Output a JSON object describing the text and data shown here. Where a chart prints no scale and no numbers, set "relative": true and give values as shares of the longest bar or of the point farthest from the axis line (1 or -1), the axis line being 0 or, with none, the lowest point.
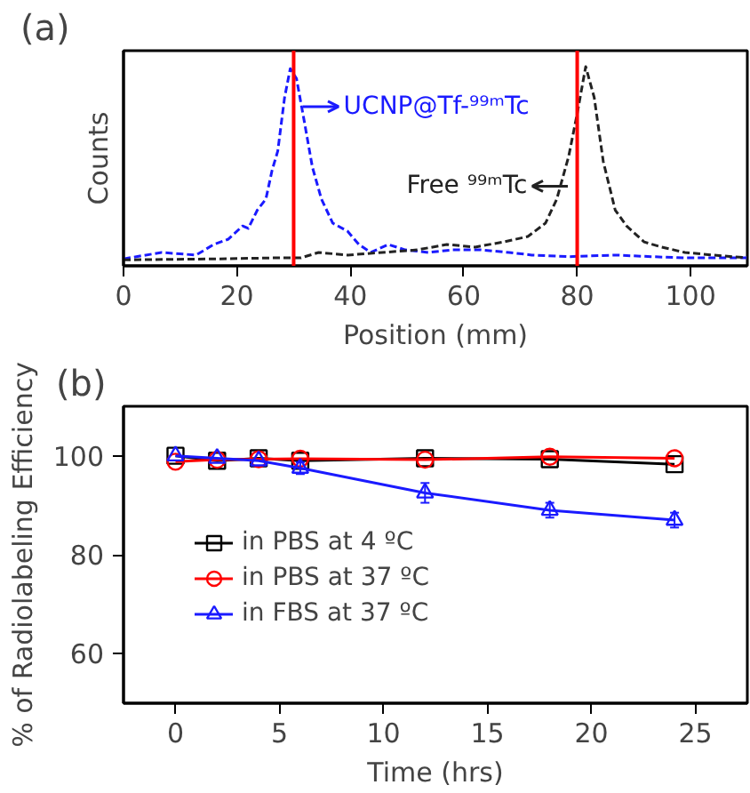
{
  "chart_data": [
    {
      "type": "line",
      "title": "(a)",
      "xlabel": "Position (mm)",
      "ylabel": "Counts",
      "relative": true,
      "xlim": [
        0,
        110
      ],
      "xticks": [
        0,
        20,
        40,
        60,
        80,
        100
      ],
      "tick_labels": "x",
      "line_style": "dashed",
      "grid": false,
      "legend": false,
      "series": [
        {
          "color": "#1a1aff",
          "x": [
            0,
            6.7,
            12.8,
            15.9,
            18.5,
            21,
            22,
            23.6,
            25.1,
            26.2,
            27.2,
            28.4,
            29.4,
            30.5,
            31.8,
            33.3,
            34.9,
            36.9,
            39.5,
            41.5,
            43.6,
            46.7,
            49.7,
            53.8,
            58,
            63,
            68,
            72,
            78.5,
            86.7,
            93,
            99,
            110
          ],
          "values": [
            0.035,
            0.067,
            0.054,
            0.107,
            0.134,
            0.2,
            0.188,
            0.28,
            0.335,
            0.48,
            0.576,
            0.845,
            0.99,
            0.94,
            0.737,
            0.496,
            0.335,
            0.214,
            0.174,
            0.107,
            0.067,
            0.107,
            0.08,
            0.067,
            0.08,
            0.08,
            0.067,
            0.054,
            0.046,
            0.054,
            0.046,
            0.04,
            0.04
          ]
        },
        {
          "color": "#222222",
          "x": [
            0,
            17,
            27,
            31.3,
            34.4,
            39.5,
            45.6,
            51.8,
            57,
            62,
            67,
            71.3,
            74.4,
            76.4,
            78.5,
            80,
            81.5,
            83,
            84.6,
            86.7,
            88.7,
            91.8,
            94.9,
            99,
            104,
            110
          ],
          "values": [
            0.03,
            0.035,
            0.04,
            0.04,
            0.067,
            0.054,
            0.067,
            0.08,
            0.107,
            0.094,
            0.12,
            0.147,
            0.214,
            0.335,
            0.55,
            0.764,
            1,
            0.845,
            0.523,
            0.28,
            0.2,
            0.12,
            0.094,
            0.067,
            0.054,
            0.04
          ]
        }
      ],
      "ref_lines": [
        {
          "axis": "x",
          "value": 30,
          "color": "#ff0000"
        },
        {
          "axis": "x",
          "value": 80,
          "color": "#ff0000"
        }
      ],
      "annotations": [
        "UCNP@Tf-⁹⁹ᵐTc",
        "Free ⁹⁹ᵐTc"
      ]
    },
    {
      "type": "line",
      "title": "(b)",
      "xlabel": "Time (hrs)",
      "ylabel": "% of Radiolabeling Efficiency",
      "xlim": [
        -2.5,
        27.5
      ],
      "xticks": [
        0,
        5,
        10,
        15,
        20,
        25
      ],
      "ylim": [
        50,
        110
      ],
      "yticks": [
        60,
        80,
        100
      ],
      "grid": false,
      "legend": "bottom left",
      "line_style": "solid",
      "x": [
        0,
        2,
        4,
        6,
        12,
        18,
        24
      ],
      "series": [
        {
          "name": "in PBS at 4 ºC",
          "color": "#000000",
          "marker": "square",
          "values": [
            100,
            99,
            99.5,
            99,
            99.5,
            99.3,
            98.3
          ]
        },
        {
          "name": "in PBS at 37 ºC",
          "color": "#ff0000",
          "marker": "circle",
          "values": [
            98.8,
            99.2,
            99.3,
            99.4,
            99.2,
            99.8,
            99.5
          ]
        },
        {
          "name": "in FBS at 37 ºC",
          "color": "#1a1aff",
          "marker": "triangle",
          "values": [
            100,
            99.5,
            99,
            97.5,
            92.5,
            89,
            87
          ],
          "errors": [
            null,
            null,
            null,
            1.2,
            2,
            1.5,
            1.5
          ]
        }
      ]
    }
  ]
}
